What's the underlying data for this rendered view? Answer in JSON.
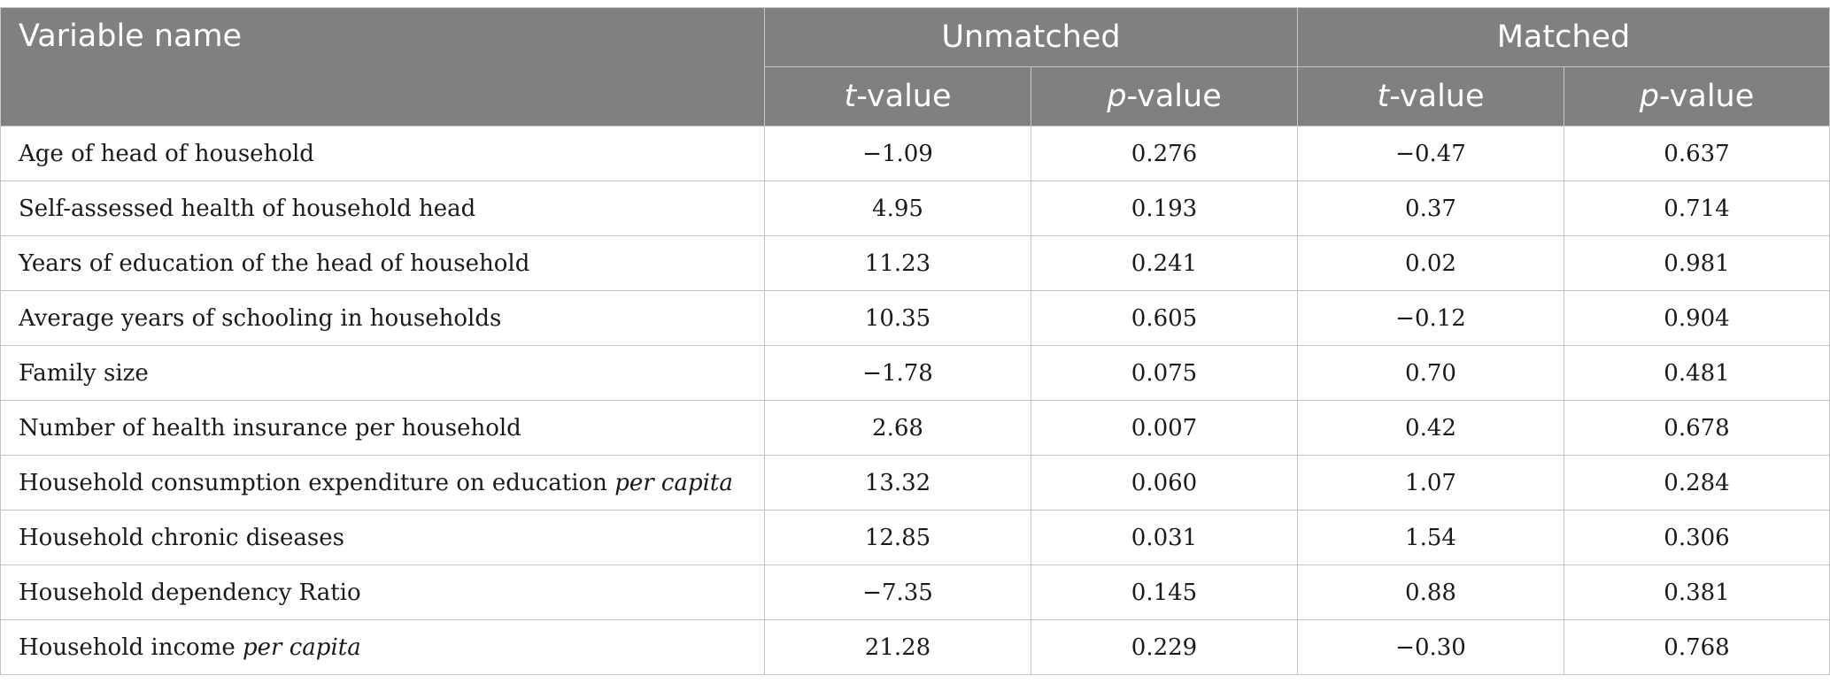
{
  "table": {
    "header": {
      "variable_name": "Variable name",
      "groups": [
        "Unmatched",
        "Matched"
      ],
      "subcolumns": [
        {
          "letter": "t",
          "suffix": "-value"
        },
        {
          "letter": "p",
          "suffix": "-value"
        },
        {
          "letter": "t",
          "suffix": "-value"
        },
        {
          "letter": "p",
          "suffix": "-value"
        }
      ]
    },
    "rows": [
      {
        "name": "Age of head of household",
        "name_italic": "",
        "unmatched_t": "−1.09",
        "unmatched_p": "0.276",
        "matched_t": "−0.47",
        "matched_p": "0.637"
      },
      {
        "name": "Self-assessed health of household head",
        "name_italic": "",
        "unmatched_t": "4.95",
        "unmatched_p": "0.193",
        "matched_t": "0.37",
        "matched_p": "0.714"
      },
      {
        "name": "Years of education of the head of household",
        "name_italic": "",
        "unmatched_t": "11.23",
        "unmatched_p": "0.241",
        "matched_t": "0.02",
        "matched_p": "0.981"
      },
      {
        "name": "Average years of schooling in households",
        "name_italic": "",
        "unmatched_t": "10.35",
        "unmatched_p": "0.605",
        "matched_t": "−0.12",
        "matched_p": "0.904"
      },
      {
        "name": "Family size",
        "name_italic": "",
        "unmatched_t": "−1.78",
        "unmatched_p": "0.075",
        "matched_t": "0.70",
        "matched_p": "0.481"
      },
      {
        "name": "Number of health insurance per household",
        "name_italic": "",
        "unmatched_t": "2.68",
        "unmatched_p": "0.007",
        "matched_t": "0.42",
        "matched_p": "0.678"
      },
      {
        "name": "Household consumption expenditure on education ",
        "name_italic": "per capita",
        "unmatched_t": "13.32",
        "unmatched_p": "0.060",
        "matched_t": "1.07",
        "matched_p": "0.284"
      },
      {
        "name": "Household chronic diseases",
        "name_italic": "",
        "unmatched_t": "12.85",
        "unmatched_p": "0.031",
        "matched_t": "1.54",
        "matched_p": "0.306"
      },
      {
        "name": "Household dependency Ratio",
        "name_italic": "",
        "unmatched_t": "−7.35",
        "unmatched_p": "0.145",
        "matched_t": "0.88",
        "matched_p": "0.381"
      },
      {
        "name": "Household income ",
        "name_italic": "per capita",
        "unmatched_t": "21.28",
        "unmatched_p": "0.229",
        "matched_t": "−0.30",
        "matched_p": "0.768"
      }
    ]
  }
}
